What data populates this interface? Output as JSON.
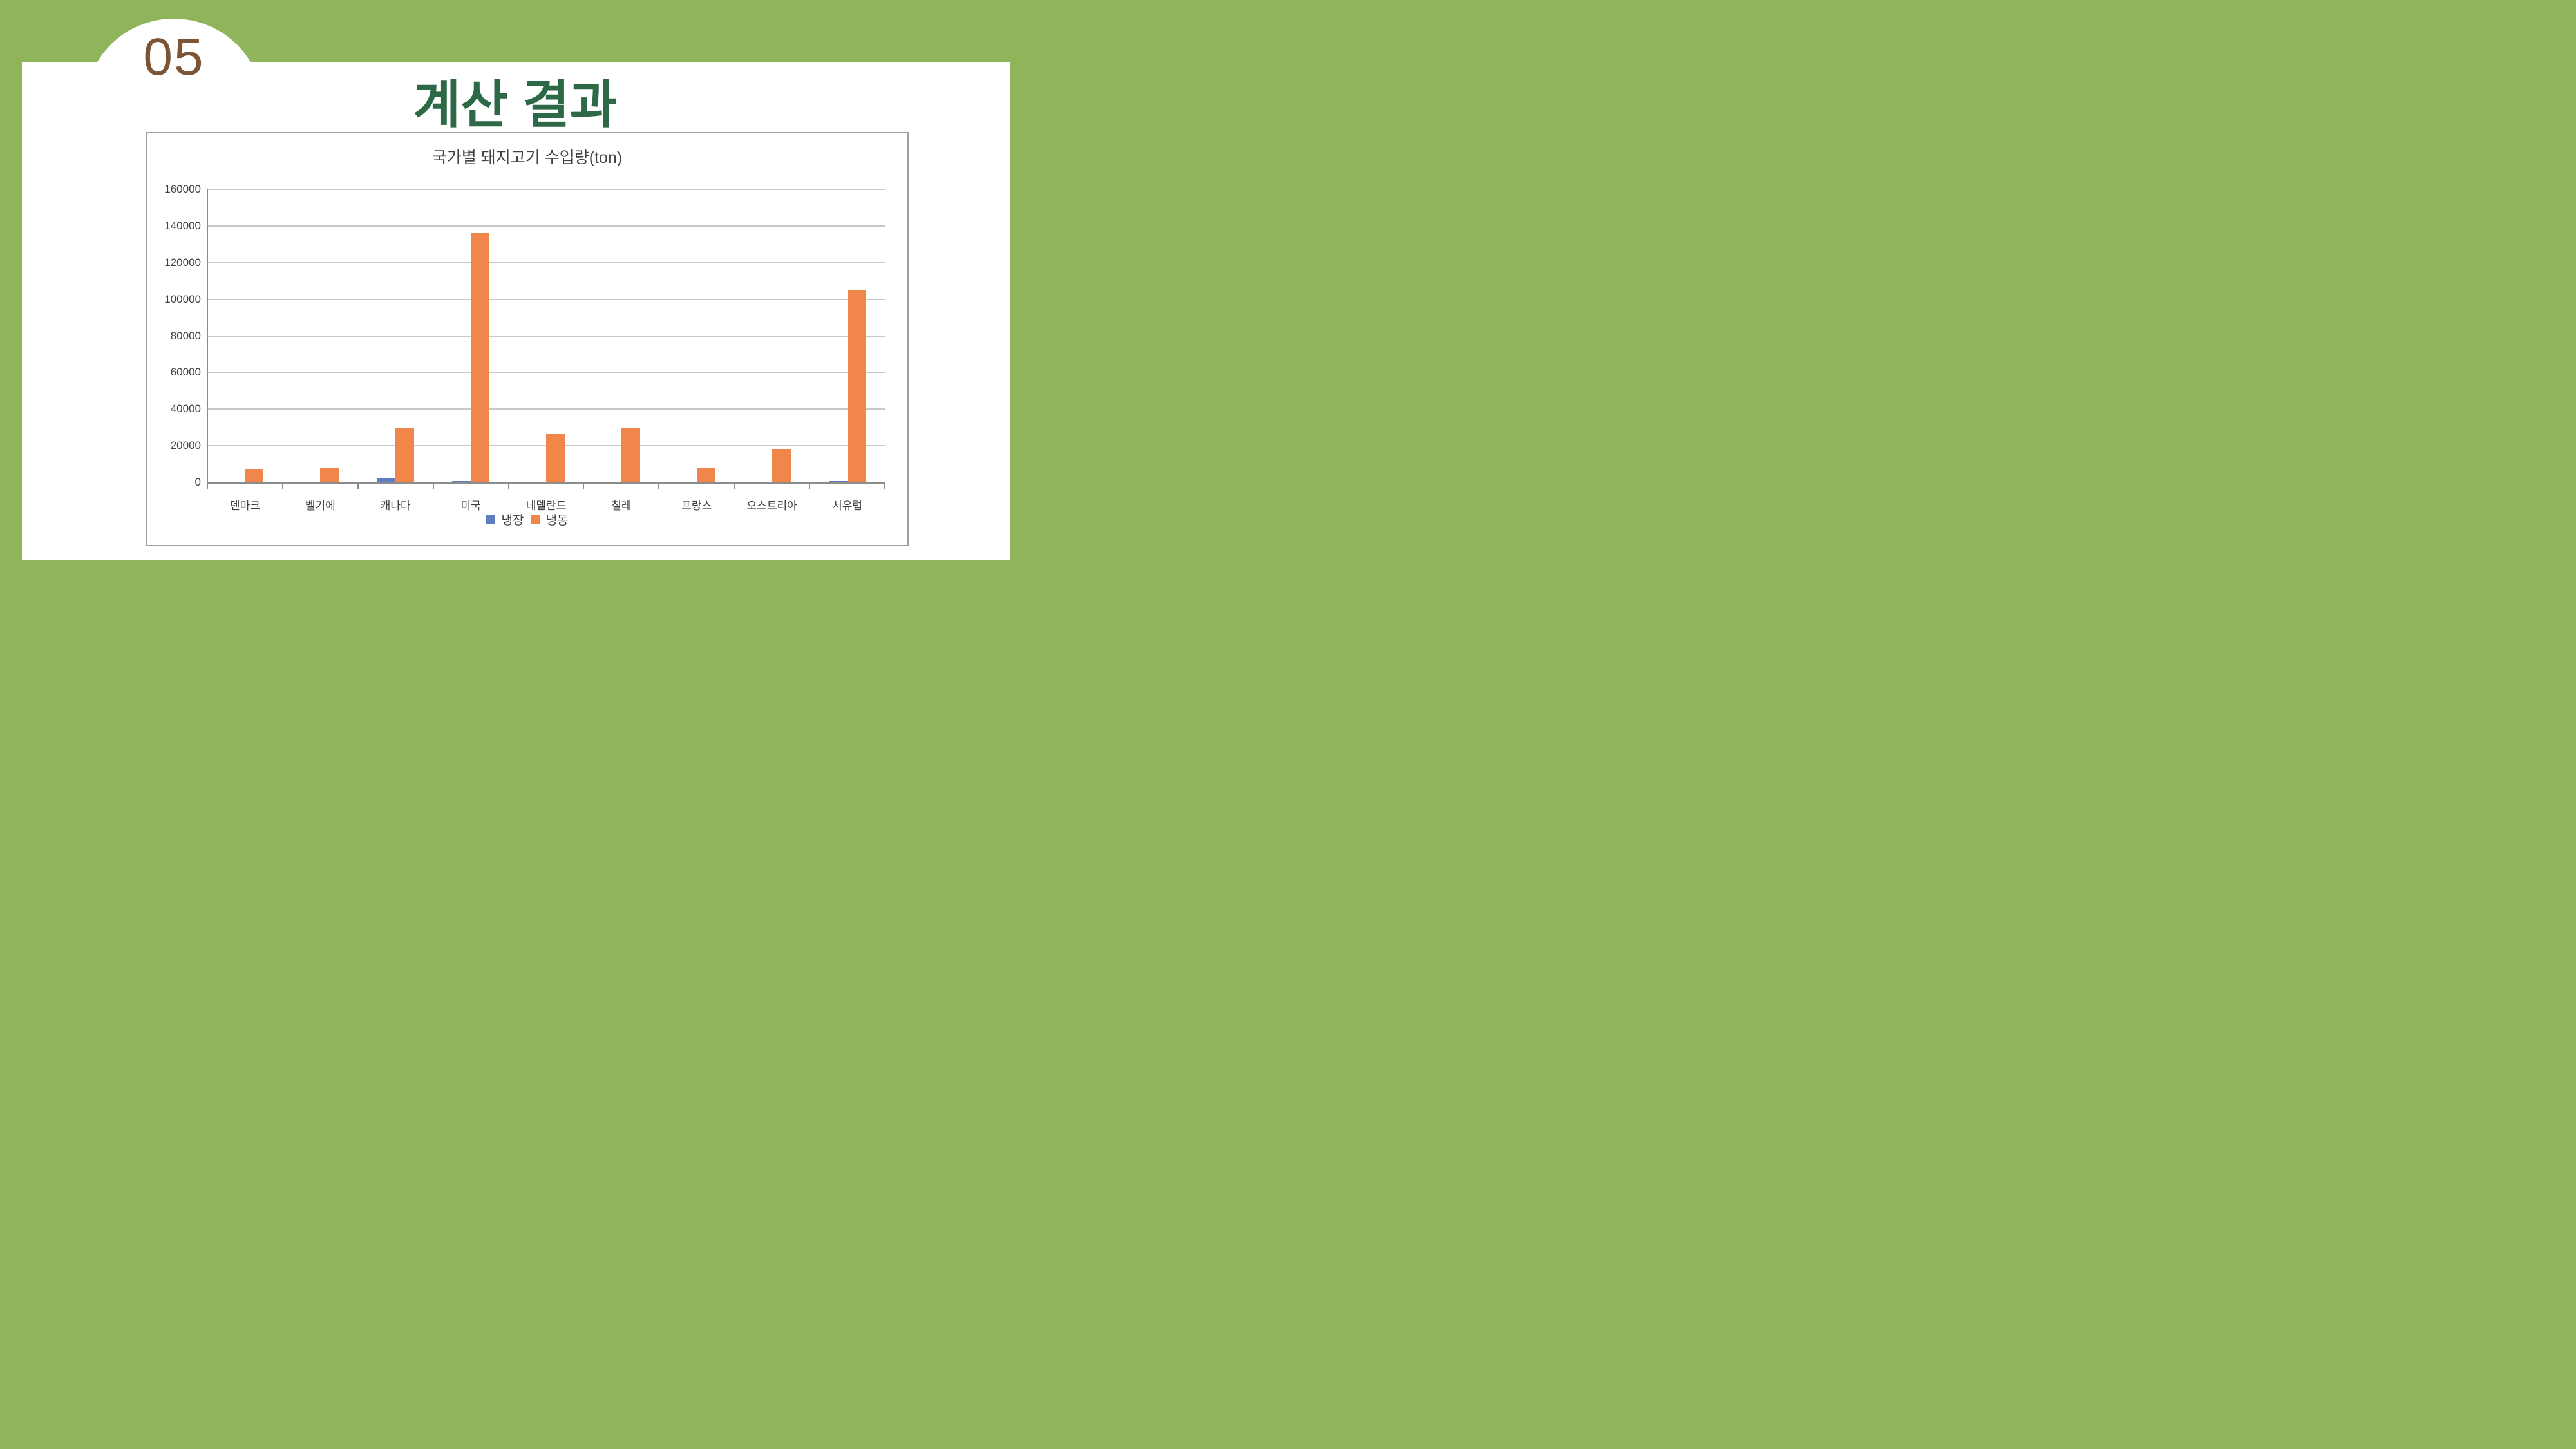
{
  "slide": {
    "page_number": "05",
    "title": "계산 결과"
  },
  "chart_data": {
    "type": "bar",
    "title": "국가별 돼지고기 수입량(ton)",
    "categories": [
      "덴마크",
      "벨기에",
      "캐나다",
      "미국",
      "네델란드",
      "칠레",
      "프랑스",
      "오스트리아",
      "서유럽"
    ],
    "series": [
      {
        "name": "냉장",
        "color": "#5E7EC1",
        "values": [
          0,
          0,
          2000,
          750,
          0,
          0,
          0,
          0,
          750
        ]
      },
      {
        "name": "냉동",
        "color": "#F08649",
        "values": [
          7000,
          7700,
          30000,
          136000,
          26500,
          29700,
          7800,
          18200,
          105000
        ]
      }
    ],
    "ylim": [
      0,
      160000
    ],
    "ytick_step": 20000,
    "ytick_labels": [
      "0",
      "20000",
      "40000",
      "60000",
      "80000",
      "100000",
      "120000",
      "140000",
      "160000"
    ],
    "grid": "horizontal",
    "legend_position": "bottom",
    "colors": {
      "gridline": "#C9C9C9",
      "axis": "#8C8C8C",
      "text": "#404040",
      "frame_border": "#A0A0A0",
      "background_green": "#8FB45A",
      "page_number_brown": "#7B5536",
      "title_green": "#2D6847"
    }
  }
}
